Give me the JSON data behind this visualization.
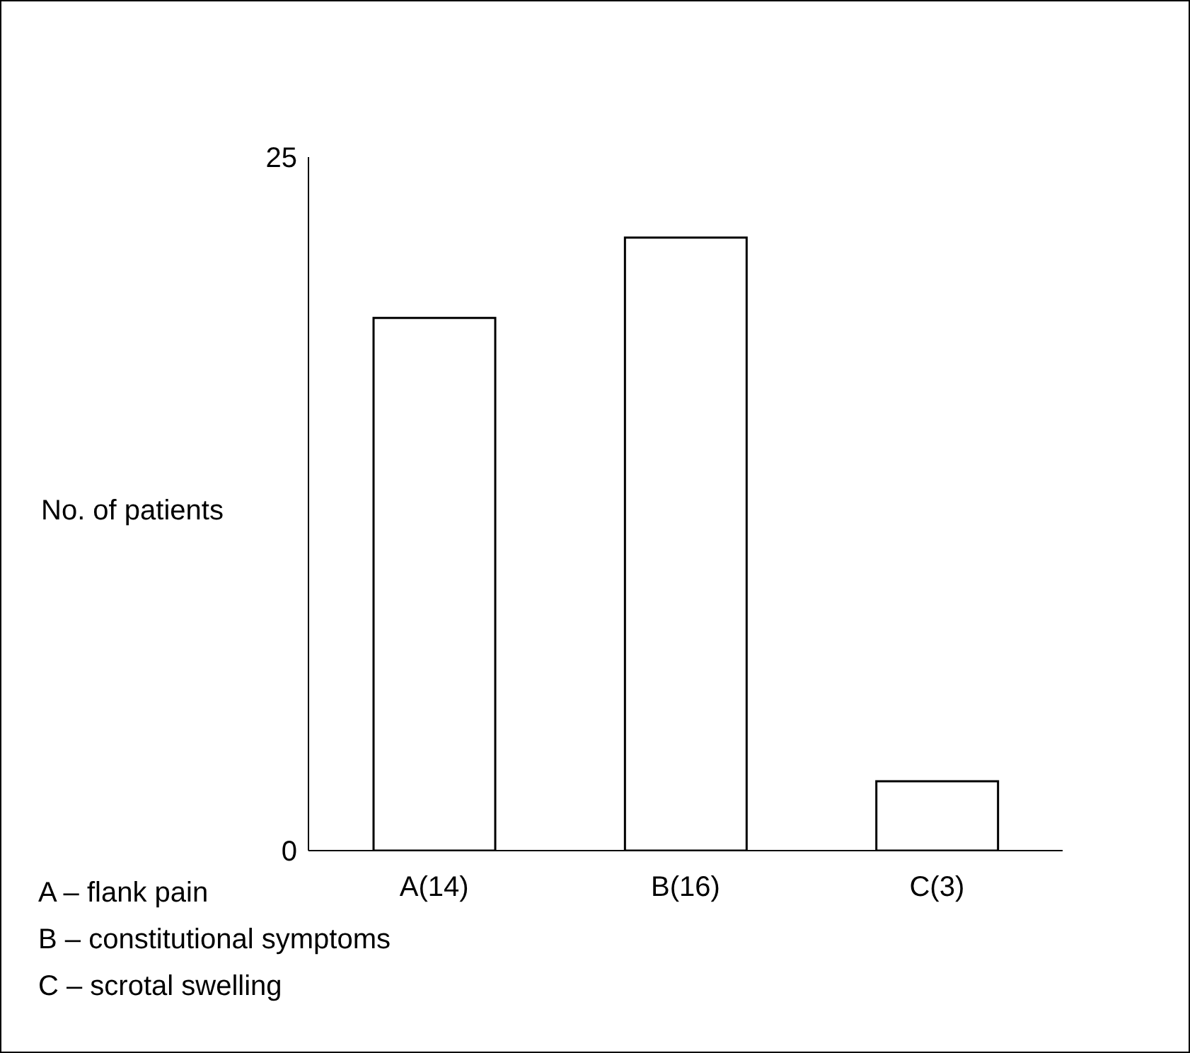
{
  "chart_data": {
    "type": "bar",
    "ylabel": "No. of patients",
    "categories": [
      "A(14)",
      "B(16)",
      "C(3)"
    ],
    "values": [
      19.2,
      22.1,
      2.5
    ],
    "color": "#ffffff",
    "ylim": [
      0,
      25
    ],
    "yticks": [
      0,
      25
    ],
    "grid": false,
    "legend": false,
    "annotations": [
      "A – flank pain",
      "B – constitutional symptoms",
      "C – scrotal swelling"
    ]
  }
}
